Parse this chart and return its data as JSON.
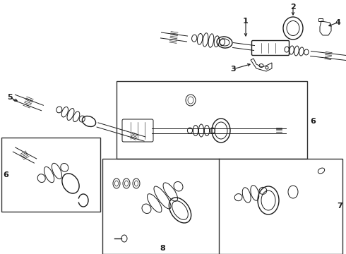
{
  "bg_color": "#ffffff",
  "line_color": "#1a1a1a",
  "box_color": "#333333",
  "lw_thin": 0.7,
  "lw_med": 1.0,
  "lw_thick": 1.5,
  "label_fs": 8
}
